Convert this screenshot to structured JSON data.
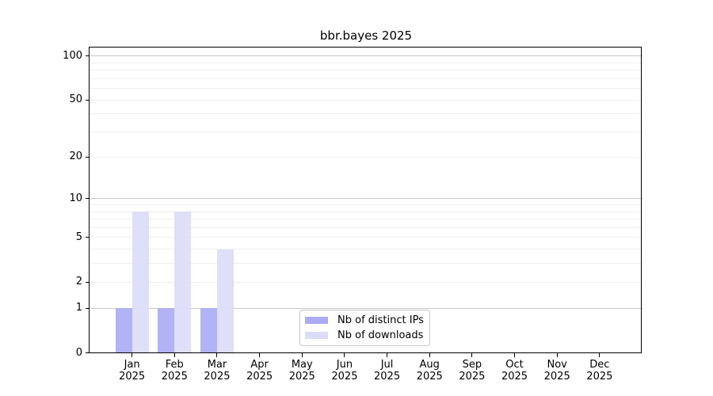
{
  "chart_data": {
    "type": "bar",
    "title": "bbr.bayes 2025",
    "categories": [
      "Jan",
      "Feb",
      "Mar",
      "Apr",
      "May",
      "Jun",
      "Jul",
      "Aug",
      "Sep",
      "Oct",
      "Nov",
      "Dec"
    ],
    "x_year_label": "2025",
    "series": [
      {
        "name": "Nb of distinct IPs",
        "key": "distinct-ips",
        "color": "#a9abf5",
        "values": [
          1,
          1,
          1,
          0,
          0,
          0,
          0,
          0,
          0,
          0,
          0,
          0
        ]
      },
      {
        "name": "Nb of downloads",
        "key": "downloads",
        "color": "#dcdcf8",
        "values": [
          8,
          8,
          4,
          0,
          0,
          0,
          0,
          0,
          0,
          0,
          0,
          0
        ]
      }
    ],
    "y_axis": {
      "scale": "log10(1+x)",
      "tick_labels": [
        0,
        1,
        2,
        5,
        10,
        20,
        50,
        100
      ],
      "major_gridlines": [
        1,
        10,
        100
      ],
      "minor_gridlines": [
        2,
        3,
        4,
        5,
        6,
        7,
        8,
        9,
        20,
        30,
        40,
        50,
        60,
        70,
        80,
        90
      ],
      "range": [
        0,
        114
      ]
    },
    "legend_position": "bottom-center",
    "grid": true,
    "colors": {
      "major_grid": "#c9c9c9",
      "minor_grid": "#efefef",
      "spine": "#000000",
      "background": "#ffffff",
      "text": "#000000"
    }
  }
}
